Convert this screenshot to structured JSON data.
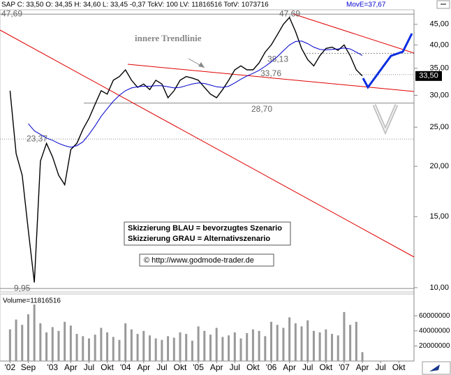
{
  "chart_data": {
    "type": "line",
    "header": "SAP C: 33,50 O: 34,35 H: 34,60 L: 33,45 -0,37 TckV: 100 LV: 11816516 TotV: 1073716",
    "ma_label": "MovE=37,67",
    "last_label": "33,50",
    "annotation": "innere Trendlinie",
    "notes": [
      "Skizzierung BLAU = bevorzugtes Szenario",
      "Skizzierung GRAU = Alternativszenario"
    ],
    "source": "© http://www.godmode-trader.de",
    "log_y": true,
    "categories": [
      "'02",
      null,
      null,
      "Sep",
      null,
      null,
      null,
      "'03",
      null,
      null,
      "Apr",
      null,
      null,
      "Jul",
      null,
      null,
      "Okt",
      null,
      null,
      "'04",
      null,
      null,
      "Apr",
      null,
      null,
      "Jul",
      null,
      null,
      "Okt",
      null,
      null,
      "'05",
      null,
      null,
      "Apr",
      null,
      null,
      "Jul",
      null,
      null,
      "Okt",
      null,
      null,
      "'06",
      null,
      null,
      "Apr",
      null,
      null,
      "Jul",
      null,
      null,
      "Okt",
      null,
      null,
      "'07",
      null,
      null,
      "Apr",
      null,
      null,
      "Jul",
      null,
      null,
      "Okt",
      null,
      null
    ],
    "series": [
      {
        "color": "#000000",
        "values": [
          30.8,
          21.5,
          19,
          13.9,
          10.3,
          20.6,
          22.8,
          21.1,
          19,
          18,
          22,
          22.8,
          24.7,
          26.3,
          28.5,
          30.8,
          30.2,
          32.7,
          33.4,
          34.7,
          32.7,
          31.4,
          32,
          31,
          32.7,
          32,
          29.6,
          30.8,
          32.7,
          33.4,
          33.1,
          32.7,
          31.4,
          30.2,
          29.6,
          31,
          32.7,
          34.7,
          35.5,
          34.7,
          34.7,
          36.1,
          38.4,
          40,
          42.4,
          45,
          46.8,
          43.2,
          39.2,
          36.8,
          35.5,
          37.6,
          39.2,
          39.5,
          38.8,
          40,
          37.6,
          34.7,
          33.5,
          null,
          null,
          null,
          null,
          null,
          null,
          null,
          null
        ]
      },
      {
        "color": "#0000cc",
        "values": [
          null,
          null,
          null,
          25.5,
          24.5,
          24,
          23.5,
          23.2,
          22.8,
          22.5,
          22.3,
          22.5,
          23,
          24,
          25.2,
          26.6,
          27.8,
          29,
          30,
          30.8,
          31.3,
          31.5,
          31.6,
          31.6,
          31.7,
          31.7,
          31.5,
          31.3,
          31.4,
          31.7,
          32,
          32.2,
          32.1,
          31.8,
          31.5,
          31.4,
          31.6,
          32.2,
          32.9,
          33.5,
          34,
          34.6,
          35.4,
          36.3,
          37.4,
          38.7,
          40,
          40.8,
          40.9,
          40.3,
          39.5,
          39,
          38.9,
          39,
          39.1,
          39.3,
          39.1,
          38.4,
          37.67,
          null,
          null,
          null,
          null,
          null,
          null,
          null,
          null
        ]
      }
    ],
    "ylim": [
      9.76,
      48.9
    ],
    "yticks": [
      {
        "value": 10,
        "label": "10,00"
      },
      {
        "value": 15,
        "label": "15,00"
      },
      {
        "value": 20,
        "label": "20,00"
      },
      {
        "value": 25,
        "label": "25,00"
      },
      {
        "value": 30,
        "label": "30,00"
      },
      {
        "value": 35,
        "label": "35,00"
      },
      {
        "value": 40,
        "label": "40,00"
      },
      {
        "value": 45,
        "label": "45,00"
      }
    ],
    "levels": [
      {
        "value": 47.69,
        "label": "47,69"
      },
      {
        "value": 9.95,
        "label": "9,95"
      },
      {
        "value": 23.37,
        "label": "23,37"
      },
      {
        "value": 28.7,
        "label": "28,70"
      },
      {
        "value": 38.13,
        "label": "38,13"
      },
      {
        "value": 33.76,
        "label": "33,76"
      }
    ],
    "volume": {
      "label": "Volume=11816516",
      "color": "#999999",
      "ylim": [
        0,
        88000000
      ],
      "yticks": [
        20000000,
        40000000,
        60000000
      ],
      "values": [
        42000000,
        55000000,
        48000000,
        62000000,
        75000000,
        50000000,
        38000000,
        45000000,
        40000000,
        52000000,
        47000000,
        36000000,
        33000000,
        30000000,
        35000000,
        44000000,
        38000000,
        32000000,
        28000000,
        50000000,
        42000000,
        36000000,
        40000000,
        34000000,
        30000000,
        28000000,
        33000000,
        31000000,
        38000000,
        36000000,
        27000000,
        46000000,
        40000000,
        35000000,
        44000000,
        32000000,
        34000000,
        38000000,
        30000000,
        37000000,
        42000000,
        40000000,
        33000000,
        52000000,
        48000000,
        44000000,
        58000000,
        50000000,
        46000000,
        54000000,
        40000000,
        38000000,
        42000000,
        36000000,
        34000000,
        65000000,
        48000000,
        52000000,
        11816516,
        null,
        null,
        null,
        null,
        null,
        null,
        null,
        null
      ]
    }
  }
}
